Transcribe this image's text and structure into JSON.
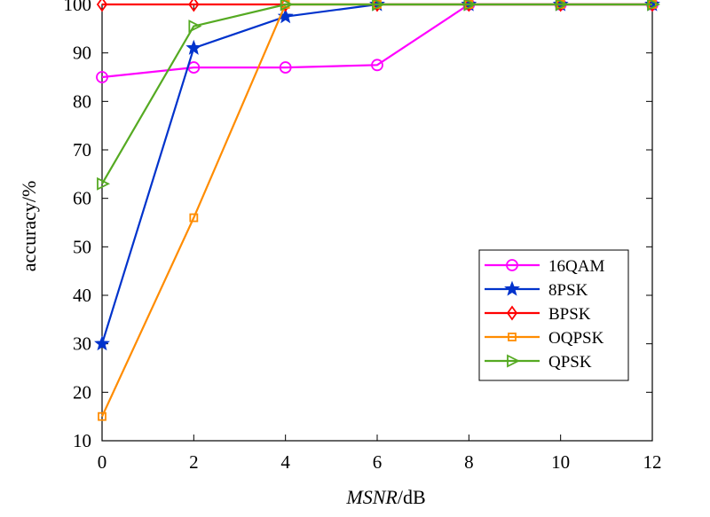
{
  "chart_data": {
    "type": "line",
    "title": "",
    "xlabel_italic": "MSNR",
    "xlabel_unit": "/dB",
    "ylabel": "accuracy/%",
    "xlim": [
      0,
      12
    ],
    "ylim": [
      10,
      100
    ],
    "xticks": [
      0,
      2,
      4,
      6,
      8,
      10,
      12
    ],
    "yticks": [
      10,
      20,
      30,
      40,
      50,
      60,
      70,
      80,
      90,
      100
    ],
    "grid": false,
    "legend_position": "lower-right",
    "x": [
      0,
      2,
      4,
      6,
      8,
      10,
      12
    ],
    "series": [
      {
        "name": "16QAM",
        "color": "#ff00ff",
        "marker": "circle",
        "values": [
          85,
          87,
          87,
          87.5,
          100,
          100,
          100
        ]
      },
      {
        "name": "8PSK",
        "color": "#0033cc",
        "marker": "star",
        "values": [
          30,
          91,
          97.5,
          100,
          100,
          100,
          100
        ]
      },
      {
        "name": "BPSK",
        "color": "#ff0000",
        "marker": "diamond",
        "values": [
          100,
          100,
          100,
          100,
          100,
          100,
          100
        ]
      },
      {
        "name": "OQPSK",
        "color": "#ff8c00",
        "marker": "square",
        "values": [
          15,
          56,
          100,
          100,
          100,
          100,
          100
        ]
      },
      {
        "name": "QPSK",
        "color": "#55aa22",
        "marker": "triangle-right",
        "values": [
          63,
          95.5,
          100,
          100,
          100,
          100,
          100
        ]
      }
    ]
  }
}
